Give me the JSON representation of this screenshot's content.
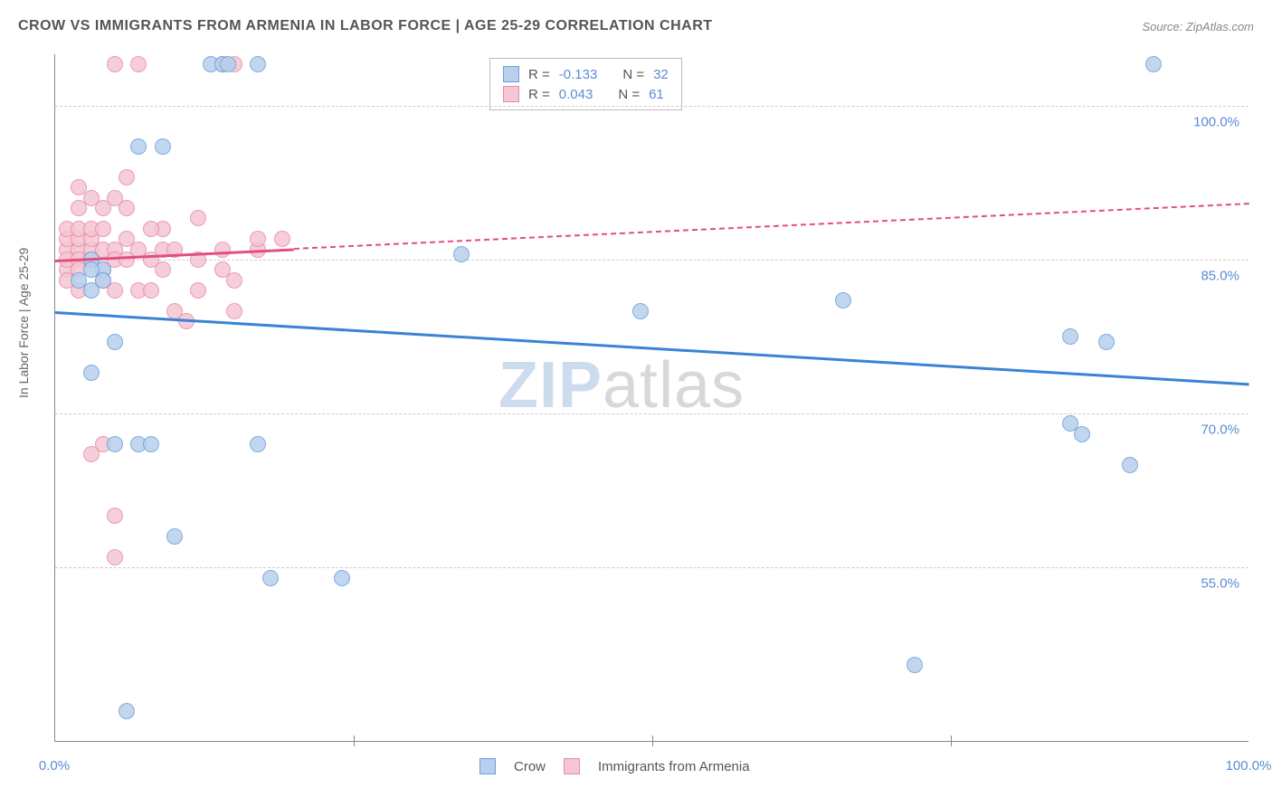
{
  "title": "CROW VS IMMIGRANTS FROM ARMENIA IN LABOR FORCE | AGE 25-29 CORRELATION CHART",
  "source": "Source: ZipAtlas.com",
  "y_axis_title": "In Labor Force | Age 25-29",
  "watermark": {
    "bold": "ZIP",
    "light": "atlas"
  },
  "chart": {
    "type": "scatter",
    "background_color": "#ffffff",
    "grid_color": "#cccccc",
    "axis_color": "#888888",
    "tick_color": "#5b8bd4",
    "xlim": [
      0,
      100
    ],
    "ylim": [
      38,
      105
    ],
    "yticks": [
      55.0,
      70.0,
      85.0,
      100.0
    ],
    "ytick_labels": [
      "55.0%",
      "70.0%",
      "85.0%",
      "100.0%"
    ],
    "xticks_minor": [
      25,
      50,
      75
    ],
    "xtick_labels": {
      "0": "0.0%",
      "100": "100.0%"
    },
    "marker_radius": 9,
    "marker_border_width": 1.5,
    "series": [
      {
        "name": "Crow",
        "fill": "#b8d0ee",
        "stroke": "#6a9fd8",
        "r": -0.133,
        "n": 32,
        "trend_color": "#3b82d6",
        "trend_y_at_x0": 80.0,
        "trend_y_at_x100": 73.0,
        "trend_solid_xmax": 100,
        "points": [
          [
            4,
            84
          ],
          [
            3,
            85
          ],
          [
            3,
            84
          ],
          [
            13,
            104
          ],
          [
            14,
            104
          ],
          [
            14.5,
            104
          ],
          [
            17,
            104
          ],
          [
            7,
            96
          ],
          [
            9,
            96
          ],
          [
            5,
            77
          ],
          [
            3,
            74
          ],
          [
            5,
            67
          ],
          [
            7,
            67
          ],
          [
            8,
            67
          ],
          [
            17,
            67
          ],
          [
            10,
            58
          ],
          [
            18,
            54
          ],
          [
            24,
            54
          ],
          [
            34,
            85.5
          ],
          [
            49,
            80
          ],
          [
            66,
            81
          ],
          [
            72,
            45.5
          ],
          [
            85,
            69
          ],
          [
            86,
            68
          ],
          [
            85,
            77.5
          ],
          [
            88,
            77
          ],
          [
            90,
            65
          ],
          [
            92,
            104
          ],
          [
            6,
            41
          ],
          [
            2,
            83
          ],
          [
            3,
            82
          ],
          [
            4,
            83
          ]
        ]
      },
      {
        "name": "Immigrants from Armenia",
        "fill": "#f5c6d3",
        "stroke": "#e88aa8",
        "r": 0.043,
        "n": 61,
        "trend_color": "#e24f7f",
        "trend_y_at_x0": 85.0,
        "trend_y_at_x100": 90.5,
        "trend_solid_xmax": 20,
        "points": [
          [
            1,
            86
          ],
          [
            1,
            84
          ],
          [
            1,
            85
          ],
          [
            1,
            87
          ],
          [
            1,
            88
          ],
          [
            1,
            83
          ],
          [
            2,
            86
          ],
          [
            2,
            85
          ],
          [
            2,
            84
          ],
          [
            2,
            87
          ],
          [
            2,
            88
          ],
          [
            2,
            82
          ],
          [
            2,
            90
          ],
          [
            2,
            92
          ],
          [
            3,
            86
          ],
          [
            3,
            85
          ],
          [
            3,
            87
          ],
          [
            3,
            88
          ],
          [
            3,
            91
          ],
          [
            4,
            86
          ],
          [
            4,
            84
          ],
          [
            4,
            88
          ],
          [
            4,
            90
          ],
          [
            4,
            83
          ],
          [
            5,
            86
          ],
          [
            5,
            85
          ],
          [
            5,
            91
          ],
          [
            5,
            82
          ],
          [
            5,
            104
          ],
          [
            6,
            87
          ],
          [
            6,
            90
          ],
          [
            6,
            85
          ],
          [
            6,
            93
          ],
          [
            7,
            104
          ],
          [
            7,
            86
          ],
          [
            7,
            82
          ],
          [
            8,
            85
          ],
          [
            8,
            82
          ],
          [
            9,
            88
          ],
          [
            9,
            86
          ],
          [
            3,
            66
          ],
          [
            5,
            60
          ],
          [
            4,
            67
          ],
          [
            10,
            86
          ],
          [
            10,
            80
          ],
          [
            11,
            79
          ],
          [
            12,
            85
          ],
          [
            12,
            89
          ],
          [
            12,
            82
          ],
          [
            14,
            104
          ],
          [
            14,
            86
          ],
          [
            15,
            104
          ],
          [
            15,
            83
          ],
          [
            15,
            80
          ],
          [
            17,
            86
          ],
          [
            17,
            87
          ],
          [
            5,
            56
          ],
          [
            19,
            87
          ],
          [
            14,
            84
          ],
          [
            8,
            88
          ],
          [
            9,
            84
          ]
        ]
      }
    ]
  },
  "r_legend": {
    "rows": [
      {
        "swatch_fill": "#b8d0ee",
        "swatch_stroke": "#6a9fd8",
        "r": "-0.133",
        "n": "32"
      },
      {
        "swatch_fill": "#f5c6d3",
        "swatch_stroke": "#e88aa8",
        "r": "0.043",
        "n": "61"
      }
    ],
    "r_label": "R =",
    "n_label": "N ="
  },
  "bottom_legend": [
    {
      "swatch_fill": "#b8d0ee",
      "swatch_stroke": "#6a9fd8",
      "label": "Crow"
    },
    {
      "swatch_fill": "#f5c6d3",
      "swatch_stroke": "#e88aa8",
      "label": "Immigrants from Armenia"
    }
  ]
}
